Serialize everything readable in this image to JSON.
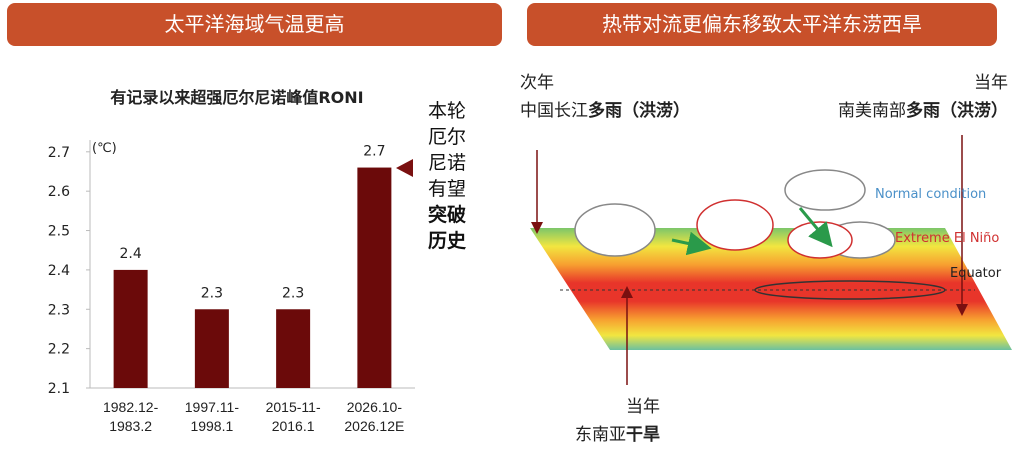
{
  "left_header": "太平洋海域气温更高",
  "right_header": "热带对流更偏东移致太平洋东涝西旱",
  "chart_data": {
    "type": "bar",
    "title": "有记录以来超强厄尔尼诺峰值RONI",
    "unit": "(℃)",
    "categories": [
      "1982.12-1983.2",
      "1997.11-1998.1",
      "2015-11-2016.1",
      "2026.10-2026.12E"
    ],
    "values": [
      2.4,
      2.3,
      2.3,
      2.66
    ],
    "value_labels": [
      "2.4",
      "2.3",
      "2.3",
      "2.7"
    ],
    "color": "#6b0a0a",
    "ylim": [
      2.1,
      2.73
    ],
    "yticks": [
      2.1,
      2.2,
      2.3,
      2.4,
      2.5,
      2.6,
      2.7
    ],
    "grid": false
  },
  "annotation": {
    "text": "本轮厄尔尼诺有望",
    "emphasis": "突破历史"
  },
  "diagram": {
    "china": {
      "year": "次年",
      "region": "中国长江",
      "effect": "多雨",
      "detail": "（洪涝）"
    },
    "south_america": {
      "year": "当年",
      "region": "南美南部",
      "effect": "多雨",
      "detail": "（洪涝）"
    },
    "southeast_asia": {
      "year": "当年",
      "region": "东南亚",
      "effect": "干旱"
    },
    "legend": [
      "Normal condition",
      "Extreme El Niño",
      "Equator"
    ]
  }
}
